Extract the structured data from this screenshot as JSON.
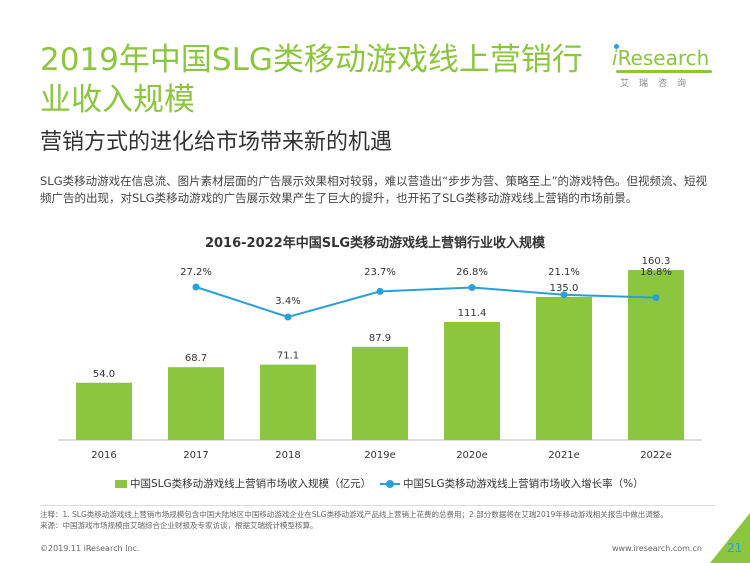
{
  "header": {
    "title": "2019年中国SLG类移动游戏线上营销行业收入规模",
    "subtitle": "营销方式的进化给市场带来新的机遇",
    "body": "SLG类移动游戏在信息流、图片素材层面的广告展示效果相对较弱，难以营造出“步步为营、策略至上”的游戏特色。但视频流、短视频广告的出现，对SLG类移动游戏的广告展示效果产生了巨大的提升，也开拓了SLG类移动游戏线上营销的市场前景。"
  },
  "logo": {
    "brand_i": "i",
    "brand_rest": "Research",
    "sub": "艾瑞咨询"
  },
  "colors": {
    "bar": "#8cc63f",
    "line": "#2a9fd8",
    "title": "#8cc63f"
  },
  "chart_data": {
    "type": "bar",
    "title": "2016-2022年中国SLG类移动游戏线上营销行业收入规模",
    "categories": [
      "2016",
      "2017",
      "2018",
      "2019e",
      "2020e",
      "2021e",
      "2022e"
    ],
    "series": [
      {
        "name": "中国SLG类移动游戏线上营销市场收入规模（亿元）",
        "type": "bar",
        "values": [
          54.0,
          68.7,
          71.1,
          87.9,
          111.4,
          135.0,
          160.3
        ],
        "labels": [
          "54.0",
          "68.7",
          "71.1",
          "87.9",
          "111.4",
          "135.0",
          "160.3"
        ]
      },
      {
        "name": "中国SLG类移动游戏线上营销市场收入增长率（%）",
        "type": "line",
        "x": [
          "2017",
          "2018",
          "2019e",
          "2020e",
          "2021e",
          "2022e"
        ],
        "values": [
          27.2,
          3.4,
          23.7,
          26.8,
          21.1,
          18.8
        ],
        "labels": [
          "27.2%",
          "3.4%",
          "23.7%",
          "26.8%",
          "21.1%",
          "18.8%"
        ]
      }
    ],
    "legend_position": "bottom"
  },
  "notes": {
    "note": "注释：1. SLG类移动游戏线上营销市场规模包含中国大陆地区中国移动游戏企业在SLG类移动游戏产品线上营销上花费的总费用；2.部分数据将在艾瑞2019年移动游戏相关报告中做出调整。",
    "source": "来源：中国游戏市场规模由艾瑞综合企业财报及专家访谈，根据艾瑞统计模型核算。"
  },
  "footer": {
    "copyright": "©2019.11 iResearch Inc.",
    "url": "www.iresearch.com.cn",
    "page": "21"
  }
}
